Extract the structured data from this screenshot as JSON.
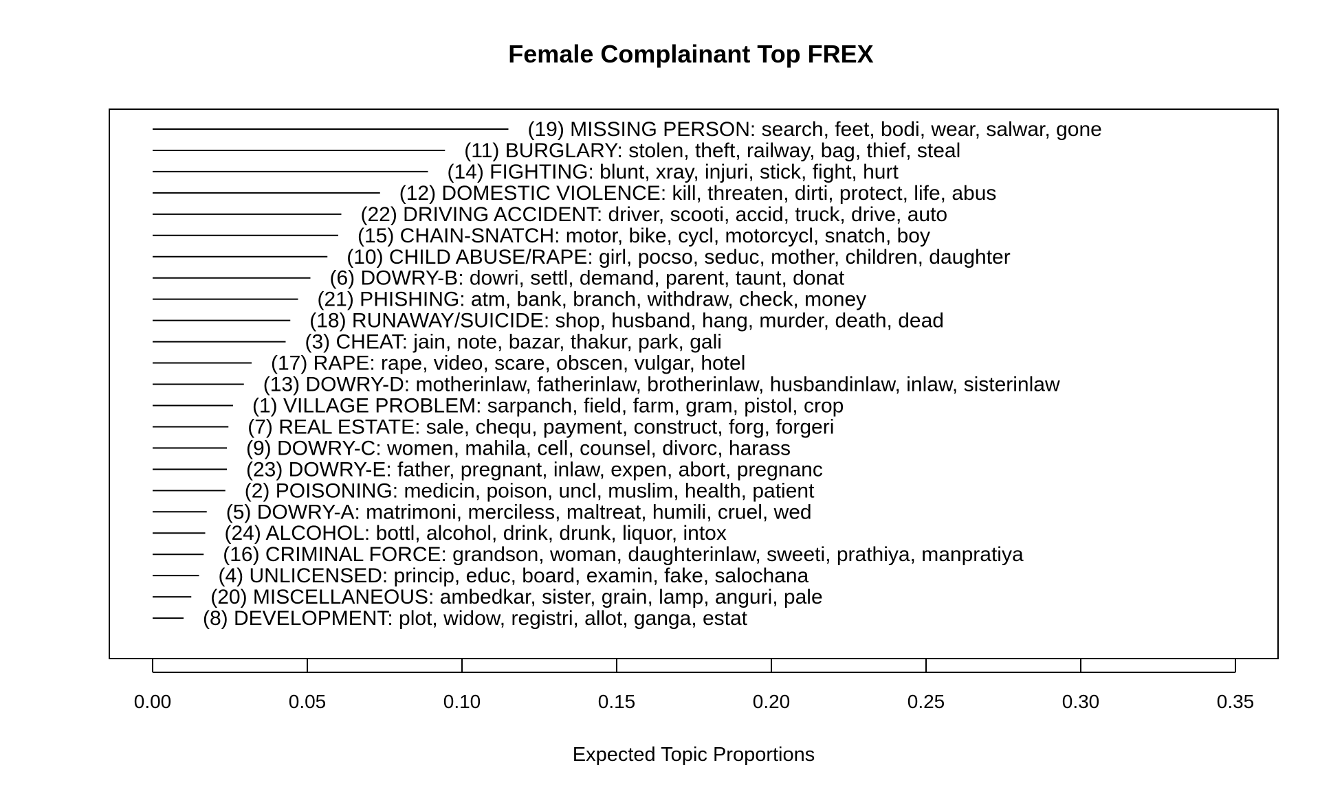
{
  "chart_data": {
    "type": "bar",
    "orientation": "horizontal",
    "title": "Female Complainant Top FREX",
    "xlabel": "Expected Topic Proportions",
    "ylabel": "",
    "xlim": [
      0,
      0.35
    ],
    "x_ticks": [
      "0.00",
      "0.05",
      "0.10",
      "0.15",
      "0.20",
      "0.25",
      "0.30",
      "0.35"
    ],
    "x_tick_values": [
      0,
      0.05,
      0.1,
      0.15,
      0.2,
      0.25,
      0.3,
      0.35
    ],
    "grid": false,
    "legend": "none",
    "line_color": "#000000",
    "series": [
      {
        "categories": [
          "(19) MISSING PERSON: search, feet, bodi, wear, salwar, gone",
          "(11) BURGLARY: stolen, theft, railway, bag, thief, steal",
          "(14) FIGHTING: blunt, xray, injuri, stick, fight, hurt",
          "(12) DOMESTIC VIOLENCE: kill, threaten, dirti, protect, life, abus",
          "(22) DRIVING ACCIDENT: driver, scooti, accid, truck, drive, auto",
          "(15) CHAIN-SNATCH: motor, bike, cycl, motorcycl, snatch, boy",
          "(10) CHILD ABUSE/RAPE: girl, pocso, seduc, mother, children, daughter",
          "(6) DOWRY-B: dowri, settl, demand, parent, taunt, donat",
          "(21) PHISHING: atm, bank, branch, withdraw, check, money",
          "(18) RUNAWAY/SUICIDE: shop, husband, hang, murder, death, dead",
          "(3) CHEAT: jain, note, bazar, thakur, park, gali",
          "(17) RAPE: rape, video, scare, obscen, vulgar, hotel",
          "(13) DOWRY-D: motherinlaw, fatherinlaw, brotherinlaw, husbandinlaw, inlaw, sisterinlaw",
          "(1) VILLAGE PROBLEM: sarpanch, field, farm, gram, pistol, crop",
          "(7) REAL ESTATE: sale, chequ, payment, construct, forg, forgeri",
          "(9) DOWRY-C: women, mahila, cell, counsel, divorc, harass",
          "(23) DOWRY-E: father, pregnant, inlaw, expen, abort, pregnanc",
          "(2) POISONING: medicin, poison, uncl, muslim, health, patient",
          "(5) DOWRY-A: matrimoni, merciless, maltreat, humili, cruel, wed",
          "(24) ALCOHOL: bottl, alcohol, drink, drunk, liquor, intox",
          "(16) CRIMINAL FORCE: grandson, woman, daughterinlaw, sweeti, prathiya, manpratiya",
          "(4) UNLICENSED: princip, educ, board, examin, fake, salochana",
          "(20) MISCELLANEOUS: ambedkar, sister, grain, lamp, anguri, pale",
          "(8) DEVELOPMENT: plot, widow, registri, allot, ganga, estat"
        ],
        "values": [
          0.115,
          0.0945,
          0.089,
          0.0735,
          0.061,
          0.06,
          0.0565,
          0.051,
          0.047,
          0.0445,
          0.043,
          0.032,
          0.0295,
          0.026,
          0.0245,
          0.024,
          0.024,
          0.0235,
          0.0175,
          0.017,
          0.0165,
          0.015,
          0.0125,
          0.01
        ]
      }
    ]
  }
}
